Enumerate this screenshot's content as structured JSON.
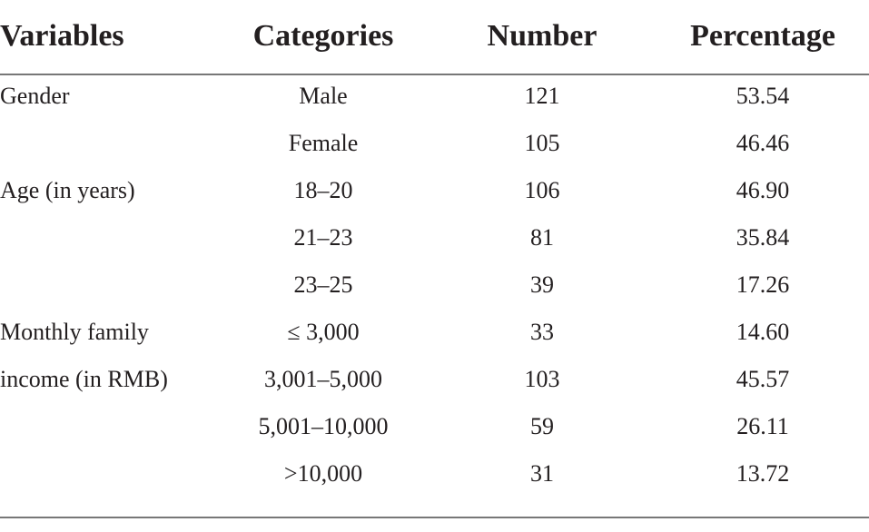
{
  "table": {
    "header": [
      "Variables",
      "Categories",
      "Number",
      "Percentage"
    ],
    "groups": [
      {
        "variable": [
          "Gender"
        ],
        "rows": [
          [
            "Male",
            "121",
            "53.54"
          ],
          [
            "Female",
            "105",
            "46.46"
          ]
        ]
      },
      {
        "variable": [
          "Age (in years)"
        ],
        "rows": [
          [
            "18–20",
            "106",
            "46.90"
          ],
          [
            "21–23",
            "81",
            "35.84"
          ],
          [
            "23–25",
            "39",
            "17.26"
          ]
        ]
      },
      {
        "variable": [
          "Monthly family",
          "income (in RMB)"
        ],
        "rows": [
          [
            "≤ 3,000",
            "33",
            "14.60"
          ],
          [
            "3,001–5,000",
            "103",
            "45.57"
          ],
          [
            "5,001–10,000",
            "59",
            "26.11"
          ],
          [
            ">10,000",
            "31",
            "13.72"
          ]
        ]
      }
    ]
  }
}
